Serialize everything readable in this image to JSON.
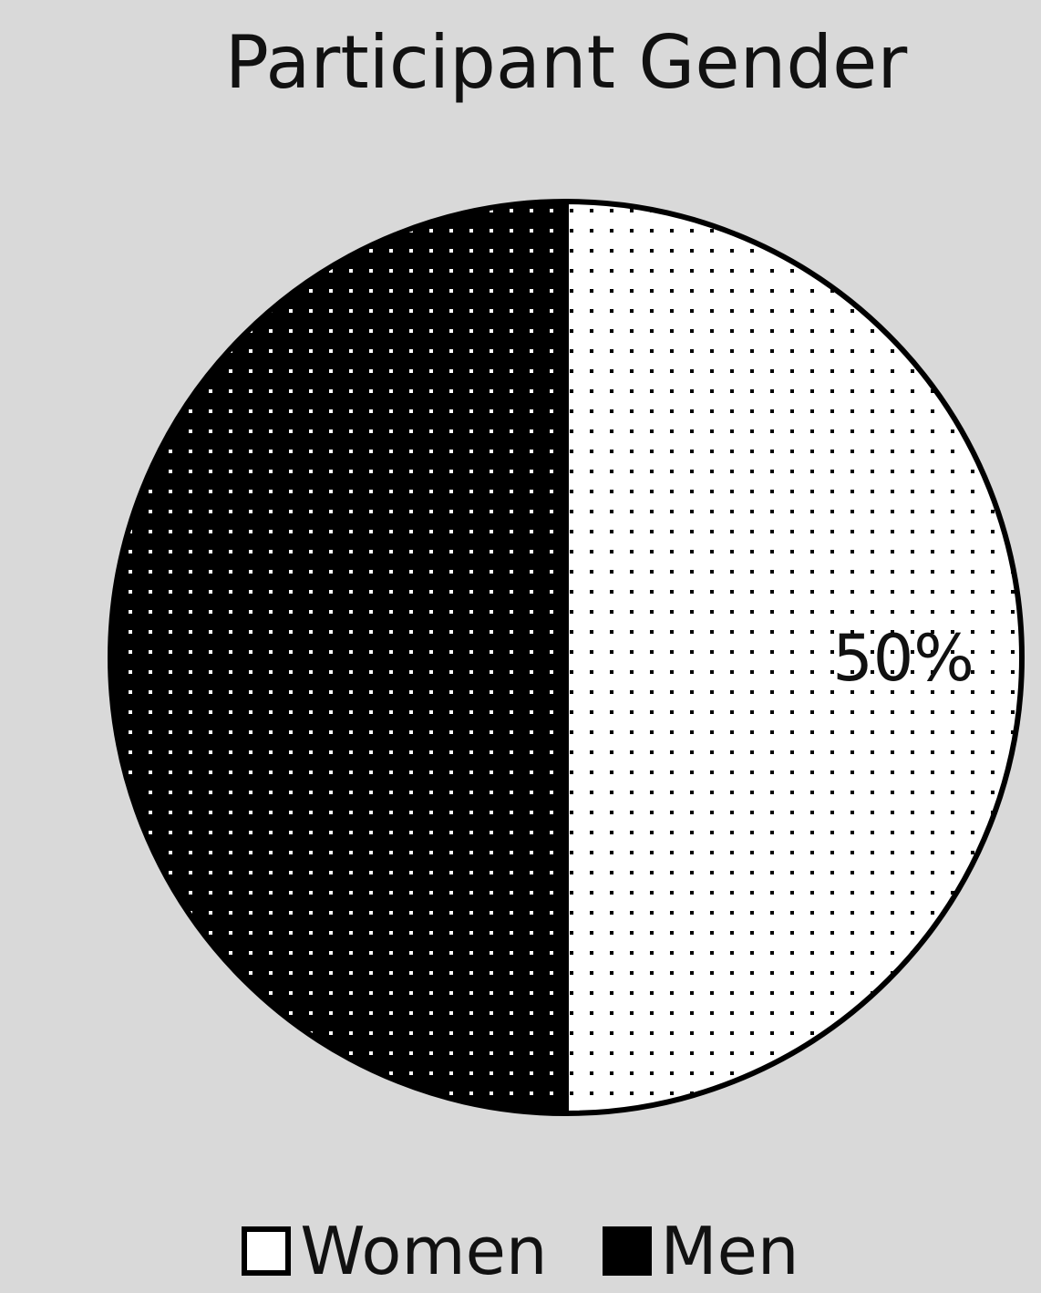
{
  "chart_data": {
    "type": "pie",
    "title": "Participant Gender",
    "slices": [
      {
        "name": "Women",
        "value": 50,
        "label": "50%",
        "color": "#ffffff",
        "pattern": "black-dots"
      },
      {
        "name": "Men",
        "value": 50,
        "label": "",
        "color": "#000000",
        "pattern": "white-dots"
      }
    ],
    "legend_position": "bottom"
  },
  "legend": {
    "items": [
      {
        "label": "Women"
      },
      {
        "label": "Men"
      }
    ]
  }
}
